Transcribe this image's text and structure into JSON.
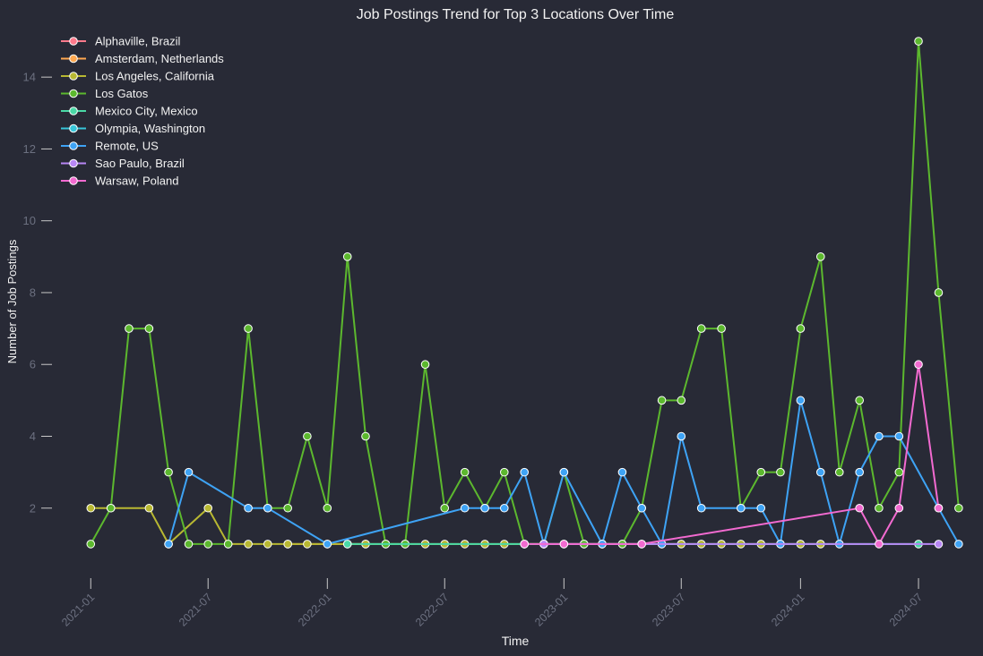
{
  "chart_data": {
    "type": "line",
    "title": "Job Postings Trend for Top 3 Locations Over Time",
    "xlabel": "Time",
    "ylabel": "Number of Job Postings",
    "x_range": [
      "2020-11-16",
      "2024-09-15"
    ],
    "ylim": [
      0.2,
      15.2
    ],
    "y_ticks": [
      2,
      4,
      6,
      8,
      10,
      12,
      14
    ],
    "x_ticks": [
      "2021-01",
      "2021-07",
      "2022-01",
      "2022-07",
      "2023-01",
      "2023-07",
      "2024-01",
      "2024-07"
    ],
    "grid": false,
    "legend_position": "top-left",
    "series": [
      {
        "name": "Alphaville, Brazil",
        "color": "#ff7a8c",
        "points": []
      },
      {
        "name": "Amsterdam, Netherlands",
        "color": "#ffa850",
        "points": [
          [
            "2021-11-01",
            1
          ],
          [
            "2022-03-01",
            1
          ]
        ]
      },
      {
        "name": "Los Angeles, California",
        "color": "#b8b832",
        "points": [
          [
            "2021-01-01",
            2
          ],
          [
            "2021-02-01",
            2
          ],
          [
            "2021-04-01",
            2
          ],
          [
            "2021-05-01",
            1
          ],
          [
            "2021-07-01",
            2
          ],
          [
            "2021-08-01",
            1
          ],
          [
            "2021-09-01",
            1
          ],
          [
            "2021-10-01",
            1
          ],
          [
            "2021-11-01",
            1
          ],
          [
            "2021-12-01",
            1
          ],
          [
            "2022-01-01",
            1
          ],
          [
            "2022-02-01",
            1
          ],
          [
            "2022-03-01",
            1
          ],
          [
            "2022-04-01",
            1
          ],
          [
            "2022-05-01",
            1
          ],
          [
            "2022-06-01",
            1
          ],
          [
            "2022-07-01",
            1
          ],
          [
            "2022-08-01",
            1
          ],
          [
            "2022-09-01",
            1
          ],
          [
            "2022-10-01",
            1
          ],
          [
            "2022-11-01",
            1
          ],
          [
            "2022-12-01",
            1
          ],
          [
            "2023-01-01",
            1
          ],
          [
            "2023-02-01",
            1
          ],
          [
            "2023-03-01",
            1
          ],
          [
            "2023-04-01",
            1
          ],
          [
            "2023-05-01",
            1
          ],
          [
            "2023-06-01",
            1
          ],
          [
            "2023-07-01",
            1
          ],
          [
            "2023-08-01",
            1
          ],
          [
            "2023-09-01",
            1
          ],
          [
            "2023-10-01",
            1
          ],
          [
            "2023-11-01",
            1
          ],
          [
            "2023-12-01",
            1
          ],
          [
            "2024-01-01",
            1
          ],
          [
            "2024-02-01",
            1
          ]
        ]
      },
      {
        "name": "Los Gatos",
        "color": "#5cb82e",
        "points": [
          [
            "2021-01-01",
            1
          ],
          [
            "2021-02-01",
            2
          ],
          [
            "2021-03-01",
            7
          ],
          [
            "2021-04-01",
            7
          ],
          [
            "2021-05-01",
            3
          ],
          [
            "2021-06-01",
            1
          ],
          [
            "2021-07-01",
            1
          ],
          [
            "2021-08-01",
            1
          ],
          [
            "2021-09-01",
            7
          ],
          [
            "2021-10-01",
            2
          ],
          [
            "2021-11-01",
            2
          ],
          [
            "2021-12-01",
            4
          ],
          [
            "2022-01-01",
            2
          ],
          [
            "2022-02-01",
            9
          ],
          [
            "2022-03-01",
            4
          ],
          [
            "2022-04-01",
            1
          ],
          [
            "2022-05-01",
            1
          ],
          [
            "2022-06-01",
            6
          ],
          [
            "2022-07-01",
            2
          ],
          [
            "2022-08-01",
            3
          ],
          [
            "2022-09-01",
            2
          ],
          [
            "2022-10-01",
            3
          ],
          [
            "2022-11-01",
            1
          ],
          [
            "2022-12-01",
            1
          ],
          [
            "2023-01-01",
            3
          ],
          [
            "2023-02-01",
            1
          ],
          [
            "2023-03-01",
            1
          ],
          [
            "2023-04-01",
            1
          ],
          [
            "2023-05-01",
            2
          ],
          [
            "2023-06-01",
            5
          ],
          [
            "2023-07-01",
            5
          ],
          [
            "2023-08-01",
            7
          ],
          [
            "2023-09-01",
            7
          ],
          [
            "2023-10-01",
            2
          ],
          [
            "2023-11-01",
            3
          ],
          [
            "2023-12-01",
            3
          ],
          [
            "2024-01-01",
            7
          ],
          [
            "2024-02-01",
            9
          ],
          [
            "2024-03-01",
            3
          ],
          [
            "2024-04-01",
            5
          ],
          [
            "2024-05-01",
            2
          ],
          [
            "2024-06-01",
            3
          ],
          [
            "2024-07-01",
            15
          ],
          [
            "2024-08-01",
            8
          ],
          [
            "2024-09-01",
            2
          ]
        ]
      },
      {
        "name": "Mexico City, Mexico",
        "color": "#4ad9a6",
        "points": [
          [
            "2022-02-01",
            1
          ],
          [
            "2024-07-01",
            1
          ]
        ]
      },
      {
        "name": "Olympia, Washington",
        "color": "#38c6d9",
        "points": []
      },
      {
        "name": "Remote, US",
        "color": "#3ea3f5",
        "points": [
          [
            "2021-05-01",
            1
          ],
          [
            "2021-06-01",
            3
          ],
          [
            "2021-09-01",
            2
          ],
          [
            "2021-10-01",
            2
          ],
          [
            "2022-01-01",
            1
          ],
          [
            "2022-08-01",
            2
          ],
          [
            "2022-09-01",
            2
          ],
          [
            "2022-10-01",
            2
          ],
          [
            "2022-11-01",
            3
          ],
          [
            "2022-12-01",
            1
          ],
          [
            "2023-01-01",
            3
          ],
          [
            "2023-03-01",
            1
          ],
          [
            "2023-04-01",
            3
          ],
          [
            "2023-05-01",
            2
          ],
          [
            "2023-06-01",
            1
          ],
          [
            "2023-07-01",
            4
          ],
          [
            "2023-08-01",
            2
          ],
          [
            "2023-10-01",
            2
          ],
          [
            "2023-11-01",
            2
          ],
          [
            "2023-12-01",
            1
          ],
          [
            "2024-01-01",
            5
          ],
          [
            "2024-02-01",
            3
          ],
          [
            "2024-03-01",
            1
          ],
          [
            "2024-04-01",
            3
          ],
          [
            "2024-05-01",
            4
          ],
          [
            "2024-06-01",
            4
          ],
          [
            "2024-08-01",
            2
          ],
          [
            "2024-09-01",
            1
          ]
        ]
      },
      {
        "name": "Sao Paulo, Brazil",
        "color": "#b887f5",
        "points": [
          [
            "2022-12-01",
            1
          ],
          [
            "2024-08-01",
            1
          ]
        ]
      },
      {
        "name": "Warsaw, Poland",
        "color": "#f26ad0",
        "points": [
          [
            "2022-11-01",
            1
          ],
          [
            "2023-01-01",
            1
          ],
          [
            "2023-05-01",
            1
          ],
          [
            "2024-04-01",
            2
          ],
          [
            "2024-05-01",
            1
          ],
          [
            "2024-06-01",
            2
          ],
          [
            "2024-07-01",
            6
          ],
          [
            "2024-08-01",
            2
          ]
        ]
      }
    ]
  }
}
